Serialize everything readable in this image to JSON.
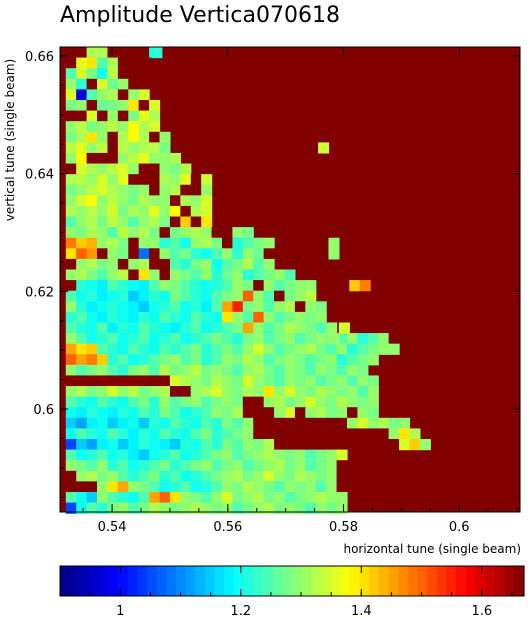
{
  "chart_data": {
    "type": "heatmap",
    "title": "Amplitude Vertica070618",
    "xlabel": "horizontal tune (single beam)",
    "ylabel": "vertical tune (single beam)",
    "xlim": [
      0.531,
      0.6105
    ],
    "ylim": [
      0.5825,
      0.6615
    ],
    "x_ticks": [
      0.54,
      0.56,
      0.58,
      0.6
    ],
    "x_tick_labels": [
      "0.54",
      "0.56",
      "0.58",
      "0.6"
    ],
    "y_ticks": [
      0.6,
      0.62,
      0.64,
      0.66
    ],
    "y_tick_labels": [
      "0.6",
      "0.62",
      "0.64",
      "0.66"
    ],
    "grid": false,
    "colorbar": {
      "range": [
        0.9,
        1.67
      ],
      "ticks": [
        1,
        1.2,
        1.4,
        1.6
      ],
      "tick_labels": [
        "1",
        "1.2",
        "1.4",
        "1.6"
      ],
      "colormap": "jet"
    },
    "background_value": 1.67,
    "cell_size": [
      0.0018,
      0.0018
    ],
    "rows": [
      {
        "y": 0.6597,
        "x0": 0.532,
        "values": [
          1.67,
          1.67,
          1.32,
          1.32,
          1.67,
          1.67,
          1.67,
          1.67,
          1.22
        ]
      },
      {
        "y": 0.6579,
        "x0": 0.532,
        "values": [
          1.67,
          1.36,
          1.4,
          1.25,
          1.32,
          1.67,
          1.67,
          1.67,
          1.67
        ]
      },
      {
        "y": 0.6561,
        "x0": 0.532,
        "values": [
          1.25,
          1.35,
          1.28,
          1.2,
          1.33,
          1.67,
          1.67
        ]
      },
      {
        "y": 0.6543,
        "x0": 0.532,
        "values": [
          1.3,
          1.22,
          1.67,
          1.35,
          1.27,
          1.3,
          1.67,
          1.67,
          1.67,
          1.67
        ]
      },
      {
        "y": 0.6525,
        "x0": 0.532,
        "values": [
          1.35,
          0.97,
          1.25,
          1.3,
          1.32,
          1.67,
          1.3,
          1.35
        ]
      },
      {
        "y": 0.6507,
        "x0": 0.532,
        "values": [
          1.28,
          1.3,
          1.67,
          1.27,
          1.28,
          1.3,
          1.4,
          1.67,
          1.35
        ]
      },
      {
        "y": 0.6489,
        "x0": 0.532,
        "values": [
          1.67,
          1.67,
          1.35,
          1.67,
          1.3,
          1.67,
          1.28,
          1.36,
          1.32
        ]
      },
      {
        "y": 0.6471,
        "x0": 0.532,
        "values": [
          1.3,
          1.33,
          1.28,
          1.3,
          1.33,
          1.3,
          1.38,
          1.32,
          1.35
        ]
      },
      {
        "y": 0.6453,
        "x0": 0.532,
        "values": [
          1.28,
          1.32,
          1.4,
          1.3,
          1.67,
          1.32,
          1.38,
          1.32,
          1.67,
          1.3
        ]
      },
      {
        "y": 0.6435,
        "x0": 0.532,
        "values": [
          1.33,
          1.36,
          1.3,
          1.33,
          1.67,
          1.33,
          1.3,
          1.32,
          1.33,
          1.28
        ]
      },
      {
        "y": 0.6417,
        "x0": 0.532,
        "values": [
          1.3,
          1.38,
          1.67,
          1.67,
          1.67,
          1.3,
          1.33,
          1.36,
          1.3,
          1.3,
          1.32
        ]
      },
      {
        "y": 0.6399,
        "x0": 0.532,
        "values": [
          1.67,
          1.35,
          1.32,
          1.3,
          1.33,
          1.35,
          1.3,
          1.67,
          1.67,
          1.3,
          1.28,
          1.32
        ]
      },
      {
        "y": 0.6381,
        "x0": 0.532,
        "values": [
          1.32,
          1.33,
          1.3,
          1.35,
          1.3,
          1.36,
          1.67,
          1.67,
          1.67,
          1.32,
          1.3,
          1.36,
          1.67,
          1.34
        ]
      },
      {
        "y": 0.6363,
        "x0": 0.532,
        "values": [
          1.28,
          1.3,
          1.33,
          1.35,
          1.32,
          1.3,
          1.28,
          1.3,
          1.67,
          1.3,
          1.32,
          1.67,
          1.67,
          1.3
        ]
      },
      {
        "y": 0.6345,
        "x0": 0.532,
        "values": [
          1.3,
          1.35,
          1.38,
          1.3,
          1.33,
          1.3,
          1.28,
          1.32,
          1.3,
          1.3,
          1.67,
          1.32,
          1.3,
          1.35
        ]
      },
      {
        "y": 0.6327,
        "x0": 0.532,
        "values": [
          1.32,
          1.3,
          1.33,
          1.3,
          1.35,
          1.28,
          1.32,
          1.3,
          1.36,
          1.3,
          1.38,
          1.67,
          1.32,
          1.35
        ]
      },
      {
        "y": 0.6309,
        "x0": 0.532,
        "values": [
          1.25,
          1.3,
          1.32,
          1.28,
          1.33,
          1.3,
          1.25,
          1.3,
          1.32,
          1.28,
          1.67,
          1.42,
          1.67,
          1.4
        ]
      },
      {
        "y": 0.6291,
        "x0": 0.532,
        "values": [
          1.3,
          1.28,
          1.32,
          1.3,
          1.25,
          1.33,
          1.3,
          1.32,
          1.28,
          1.67,
          1.28,
          1.3,
          1.32,
          1.3,
          1.67,
          1.67,
          1.3,
          1.28
        ]
      },
      {
        "y": 0.6273,
        "x0": 0.532,
        "values": [
          1.48,
          1.42,
          1.44,
          1.3,
          1.32,
          1.28,
          1.67,
          1.3,
          1.3,
          1.22,
          1.25,
          1.2,
          1.3,
          1.32,
          1.28,
          1.67,
          1.22,
          1.25,
          1.28,
          1.3
        ]
      },
      {
        "y": 0.6255,
        "x0": 0.532,
        "values": [
          1.4,
          1.5,
          1.46,
          1.67,
          1.3,
          1.28,
          1.67,
          1.08,
          1.67,
          1.3,
          1.25,
          1.28,
          1.22,
          1.2,
          1.25,
          1.3,
          1.22,
          1.3,
          1.27,
          1.67
        ]
      },
      {
        "y": 0.6237,
        "x0": 0.532,
        "values": [
          1.67,
          1.3,
          1.32,
          1.28,
          1.3,
          1.67,
          1.3,
          1.32,
          1.67,
          1.67,
          1.25,
          1.22,
          1.28,
          1.3,
          1.2,
          1.25,
          1.28,
          1.32,
          1.25,
          1.3
        ]
      },
      {
        "y": 0.6219,
        "x0": 0.532,
        "values": [
          1.3,
          1.32,
          1.28,
          1.25,
          1.3,
          1.33,
          1.67,
          1.4,
          1.3,
          1.67,
          1.3,
          1.28,
          1.25,
          1.3,
          1.22,
          1.27,
          1.3,
          1.22,
          1.25,
          1.28,
          1.3,
          1.25
        ]
      },
      {
        "y": 0.6201,
        "x0": 0.532,
        "values": [
          1.67,
          1.22,
          1.2,
          1.18,
          1.25,
          1.22,
          1.2,
          1.18,
          1.25,
          1.3,
          1.28,
          1.25,
          1.22,
          1.2,
          1.22,
          1.25,
          1.3,
          1.28,
          1.67,
          1.3,
          1.25,
          1.28,
          1.3,
          1.3
        ]
      },
      {
        "y": 0.6183,
        "x0": 0.532,
        "values": [
          1.25,
          1.2,
          1.22,
          1.18,
          1.2,
          1.22,
          1.15,
          1.18,
          1.22,
          1.2,
          1.28,
          1.25,
          1.22,
          1.2,
          1.25,
          1.28,
          1.3,
          1.5,
          1.3,
          1.25,
          1.67,
          1.28,
          1.3,
          1.33
        ]
      },
      {
        "y": 0.6165,
        "x0": 0.532,
        "values": [
          1.3,
          1.22,
          1.18,
          1.2,
          1.22,
          1.2,
          1.18,
          1.15,
          1.2,
          1.22,
          1.25,
          1.2,
          1.22,
          1.18,
          1.25,
          1.45,
          1.55,
          1.28,
          1.3,
          1.25,
          1.3,
          1.32,
          1.67,
          1.3,
          1.28
        ]
      },
      {
        "y": 0.6147,
        "x0": 0.532,
        "values": [
          1.22,
          1.25,
          1.2,
          1.18,
          1.22,
          1.2,
          1.18,
          1.22,
          1.2,
          1.25,
          1.22,
          1.2,
          1.25,
          1.22,
          1.2,
          1.4,
          1.3,
          1.25,
          1.5,
          1.3,
          1.25,
          1.28,
          1.3,
          1.28,
          1.3
        ]
      },
      {
        "y": 0.6129,
        "x0": 0.532,
        "values": [
          1.25,
          1.22,
          1.2,
          1.25,
          1.18,
          1.22,
          1.2,
          1.25,
          1.22,
          1.2,
          1.18,
          1.22,
          1.25,
          1.2,
          1.22,
          1.25,
          1.28,
          1.45,
          1.3,
          1.25,
          1.28,
          1.32,
          1.3,
          1.28,
          1.25,
          1.3
        ]
      },
      {
        "y": 0.6111,
        "x0": 0.532,
        "values": [
          1.3,
          1.25,
          1.2,
          1.22,
          1.25,
          1.2,
          1.22,
          1.25,
          1.2,
          1.22,
          1.25,
          1.2,
          1.22,
          1.25,
          1.28,
          1.25,
          1.22,
          1.28,
          1.3,
          1.25,
          1.28,
          1.3,
          1.25,
          1.28,
          1.3,
          1.28,
          1.25,
          1.3,
          1.22,
          1.25,
          1.3,
          1.67,
          1.67,
          1.67
        ]
      },
      {
        "y": 0.6093,
        "x0": 0.532,
        "values": [
          1.45,
          1.4,
          1.42,
          1.25,
          1.22,
          1.2,
          1.25,
          1.22,
          1.2,
          1.25,
          1.22,
          1.25,
          1.28,
          1.22,
          1.25,
          1.28,
          1.25,
          1.3,
          1.35,
          1.3,
          1.25,
          1.28,
          1.3,
          1.32,
          1.28,
          1.25,
          1.3,
          1.22,
          1.25,
          1.28,
          1.3,
          1.3
        ]
      },
      {
        "y": 0.6075,
        "x0": 0.532,
        "values": [
          1.5,
          1.45,
          1.48,
          1.42,
          1.22,
          1.25,
          1.2,
          1.22,
          1.25,
          1.28,
          1.3,
          1.25,
          1.28,
          1.22,
          1.25,
          1.3,
          1.28,
          1.32,
          1.3,
          1.25,
          1.28,
          1.3,
          1.28,
          1.25,
          1.28,
          1.3,
          1.22,
          1.25,
          1.28,
          1.3
        ]
      },
      {
        "y": 0.6057,
        "x0": 0.532,
        "values": [
          1.3,
          1.25,
          1.28,
          1.3,
          1.25,
          1.22,
          1.28,
          1.3,
          1.25,
          1.32,
          1.28,
          1.3,
          1.33,
          1.28,
          1.3,
          1.28,
          1.25,
          1.3,
          1.32,
          1.28,
          1.25,
          1.3,
          1.28,
          1.25,
          1.3,
          1.28,
          1.25,
          1.3,
          1.28
        ]
      },
      {
        "y": 0.6039,
        "x0": 0.532,
        "values": [
          1.67,
          1.67,
          1.67,
          1.67,
          1.67,
          1.67,
          1.67,
          1.67,
          1.67,
          1.67,
          1.35,
          1.32,
          1.3,
          1.28,
          1.32,
          1.3,
          1.28,
          1.35,
          1.3,
          1.28,
          1.25,
          1.3,
          1.28,
          1.3,
          1.25,
          1.28,
          1.3,
          1.25,
          1.3,
          1.28
        ]
      },
      {
        "y": 0.6021,
        "x0": 0.532,
        "values": [
          1.3,
          1.32,
          1.28,
          1.3,
          1.35,
          1.3,
          1.33,
          1.28,
          1.3,
          1.32,
          1.67,
          1.67,
          1.3,
          1.32,
          1.35,
          1.3,
          1.28,
          1.32,
          1.3,
          1.4,
          1.3,
          1.35,
          1.3,
          1.28,
          1.32,
          1.3,
          1.28,
          1.3,
          1.25,
          1.3
        ]
      },
      {
        "y": 0.6003,
        "x0": 0.532,
        "values": [
          1.25,
          1.22,
          1.2,
          1.25,
          1.22,
          1.2,
          1.25,
          1.28,
          1.22,
          1.3,
          1.25,
          1.28,
          1.3,
          1.25,
          1.28,
          1.3,
          1.28,
          1.67,
          1.67,
          1.3,
          1.32,
          1.28,
          1.3,
          1.35,
          1.3,
          1.28,
          1.32,
          1.3,
          1.28,
          1.3
        ]
      },
      {
        "y": 0.5985,
        "x0": 0.532,
        "values": [
          1.2,
          1.18,
          1.22,
          1.2,
          1.18,
          1.22,
          1.2,
          1.25,
          1.22,
          1.28,
          1.25,
          1.2,
          1.22,
          1.25,
          1.3,
          1.28,
          1.32,
          1.67,
          1.67,
          1.67,
          1.3,
          1.35,
          1.67,
          1.3,
          1.32,
          1.28,
          1.3,
          1.67,
          1.3,
          1.28
        ]
      },
      {
        "y": 0.5967,
        "x0": 0.532,
        "values": [
          1.15,
          1.12,
          1.18,
          1.2,
          1.15,
          1.18,
          1.2,
          1.15,
          1.22,
          1.2,
          1.25,
          1.22,
          1.2,
          1.25,
          1.22,
          1.28,
          1.25,
          1.3,
          1.67,
          1.67,
          1.67,
          1.67,
          1.67,
          1.67,
          1.67,
          1.67,
          1.67,
          1.3,
          1.35,
          1.3,
          1.32,
          1.28,
          1.3
        ]
      },
      {
        "y": 0.5949,
        "x0": 0.532,
        "values": [
          1.2,
          1.25,
          1.22,
          1.2,
          1.25,
          1.22,
          1.18,
          1.22,
          1.2,
          1.25,
          1.22,
          1.2,
          1.25,
          1.28,
          1.22,
          1.25,
          1.28,
          1.3,
          1.67,
          1.67,
          1.67,
          1.67,
          1.67,
          1.67,
          1.67,
          1.67,
          1.67,
          1.67,
          1.67,
          1.67,
          1.67,
          1.3,
          1.4,
          1.32
        ]
      },
      {
        "y": 0.5931,
        "x0": 0.532,
        "values": [
          1.05,
          1.15,
          1.12,
          1.18,
          1.2,
          1.15,
          1.18,
          1.22,
          1.2,
          1.18,
          1.15,
          1.22,
          1.2,
          1.25,
          1.22,
          1.28,
          1.25,
          1.3,
          1.28,
          1.32,
          1.67,
          1.67,
          1.67,
          1.67,
          1.67,
          1.67,
          1.67,
          1.67,
          1.67,
          1.67,
          1.67,
          1.67,
          1.35,
          1.42,
          1.3
        ]
      },
      {
        "y": 0.5913,
        "x0": 0.532,
        "values": [
          1.25,
          1.2,
          1.22,
          1.25,
          1.2,
          1.22,
          1.18,
          1.15,
          1.2,
          1.22,
          1.25,
          1.2,
          1.22,
          1.25,
          1.28,
          1.3,
          1.25,
          1.28,
          1.3,
          1.32,
          1.3,
          1.28,
          1.3,
          1.25,
          1.28,
          1.3,
          1.35
        ]
      },
      {
        "y": 0.5895,
        "x0": 0.532,
        "values": [
          1.3,
          1.28,
          1.25,
          1.3,
          1.22,
          1.25,
          1.2,
          1.22,
          1.25,
          1.28,
          1.22,
          1.25,
          1.28,
          1.3,
          1.25,
          1.28,
          1.3,
          1.25,
          1.28,
          1.3,
          1.32,
          1.28,
          1.3,
          1.25,
          1.28,
          1.3,
          1.67
        ]
      },
      {
        "y": 0.5877,
        "x0": 0.532,
        "values": [
          1.67,
          1.3,
          1.32,
          1.28,
          1.3,
          1.25,
          1.22,
          1.25,
          1.28,
          1.22,
          1.25,
          1.2,
          1.22,
          1.25,
          1.28,
          1.3,
          1.32,
          1.28,
          1.3,
          1.35,
          1.3,
          1.28,
          1.32,
          1.3,
          1.28,
          1.3,
          1.67
        ]
      },
      {
        "y": 0.5859,
        "x0": 0.532,
        "values": [
          1.67,
          1.67,
          1.67,
          1.3,
          1.4,
          1.45,
          1.3,
          1.28,
          1.25,
          1.2,
          1.22,
          1.25,
          1.2,
          1.22,
          1.25,
          1.3,
          1.28,
          1.32,
          1.3,
          1.28,
          1.25,
          1.3,
          1.28,
          1.3,
          1.25,
          1.3,
          1.67
        ]
      },
      {
        "y": 0.5841,
        "x0": 0.532,
        "values": [
          1.25,
          1.2,
          1.15,
          1.3,
          1.25,
          1.22,
          1.2,
          1.25,
          1.45,
          1.5,
          1.4,
          1.3,
          1.28,
          1.25,
          1.3,
          1.35,
          1.28,
          1.3,
          1.32,
          1.28,
          1.3,
          1.25,
          1.28,
          1.3,
          1.32,
          1.3,
          1.3
        ]
      },
      {
        "y": 0.5823,
        "x0": 0.532,
        "values": [
          1.05,
          1.2,
          1.25,
          1.22,
          1.28,
          1.3,
          1.25,
          1.28,
          1.32,
          1.3,
          1.28,
          1.3,
          1.32,
          1.3,
          1.28,
          1.3,
          1.25,
          1.28,
          1.3,
          1.32,
          1.28,
          1.3,
          1.28,
          1.25,
          1.3,
          1.28,
          1.3
        ]
      }
    ],
    "isolated_cells": [
      {
        "x": 0.5468,
        "y": 0.6597,
        "value": 1.22
      },
      {
        "x": 0.5756,
        "y": 0.6435,
        "value": 1.34
      },
      {
        "x": 0.5774,
        "y": 0.6273,
        "value": 1.3
      },
      {
        "x": 0.5774,
        "y": 0.6255,
        "value": 1.3
      },
      {
        "x": 0.581,
        "y": 0.6201,
        "value": 1.42
      },
      {
        "x": 0.5828,
        "y": 0.6201,
        "value": 1.48
      },
      {
        "x": 0.5792,
        "y": 0.6129,
        "value": 1.35
      },
      {
        "x": 0.5774,
        "y": 0.6111,
        "value": 1.3
      }
    ]
  }
}
